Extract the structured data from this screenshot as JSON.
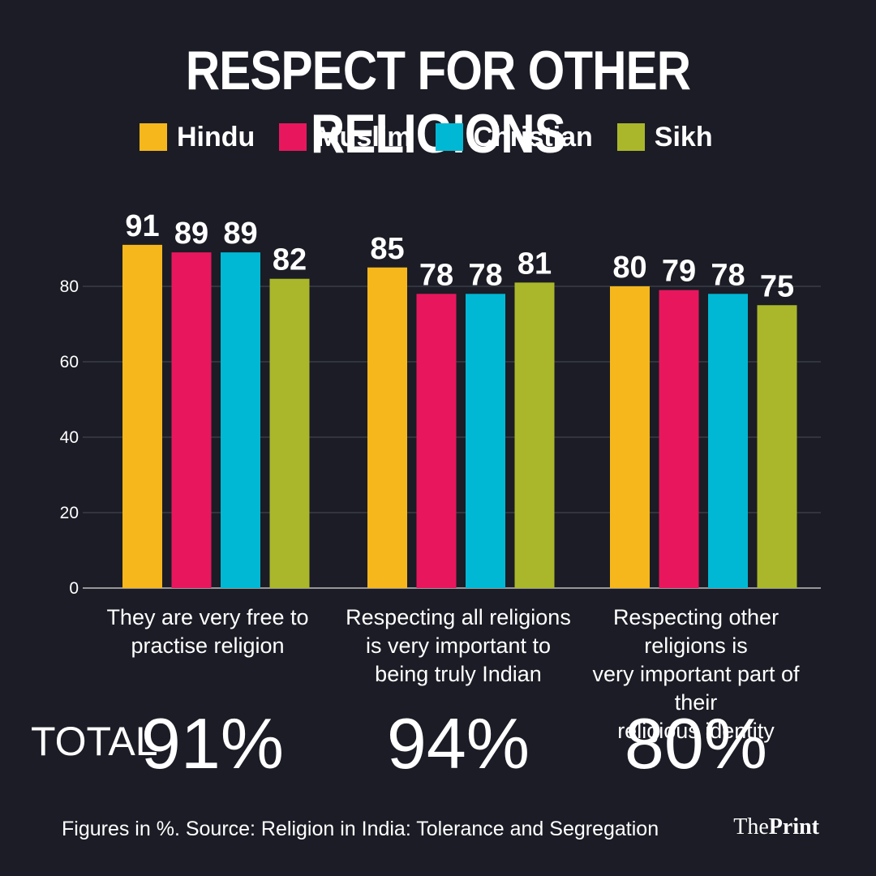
{
  "title": "RESPECT FOR OTHER RELIGIONS",
  "legend": [
    {
      "label": "Hindu",
      "color": "#f5b71c"
    },
    {
      "label": "Muslim",
      "color": "#e8175d"
    },
    {
      "label": "Christian",
      "color": "#00b8d4"
    },
    {
      "label": "Sikh",
      "color": "#aab72b"
    }
  ],
  "chart_data": {
    "type": "bar",
    "categories": [
      "They are very free to practise religion",
      "Respecting all religions is very important to being truly Indian",
      "Respecting other religions is very important part of their religious identity"
    ],
    "series": [
      {
        "name": "Hindu",
        "values": [
          91,
          85,
          80
        ],
        "color": "#f5b71c"
      },
      {
        "name": "Muslim",
        "values": [
          89,
          78,
          79
        ],
        "color": "#e8175d"
      },
      {
        "name": "Christian",
        "values": [
          89,
          78,
          78
        ],
        "color": "#00b8d4"
      },
      {
        "name": "Sikh",
        "values": [
          82,
          81,
          75
        ],
        "color": "#aab72b"
      }
    ],
    "yticks": [
      "0",
      "20",
      "40",
      "60",
      "80"
    ],
    "ylim": [
      0,
      100
    ],
    "grid": true,
    "data_labels": true
  },
  "group_labels": [
    [
      "They are very free to",
      "practise religion"
    ],
    [
      "Respecting all religions",
      "is very important to",
      "being truly Indian"
    ],
    [
      "Respecting other religions is",
      "very important part of their",
      "religious identity"
    ]
  ],
  "totals": {
    "caption": "TOTAL",
    "values": [
      "91%",
      "94%",
      "80%"
    ]
  },
  "footer": "Figures in %. Source: Religion in India: Tolerance and Segregation",
  "logo": {
    "part1": "The",
    "part2": "Print"
  }
}
